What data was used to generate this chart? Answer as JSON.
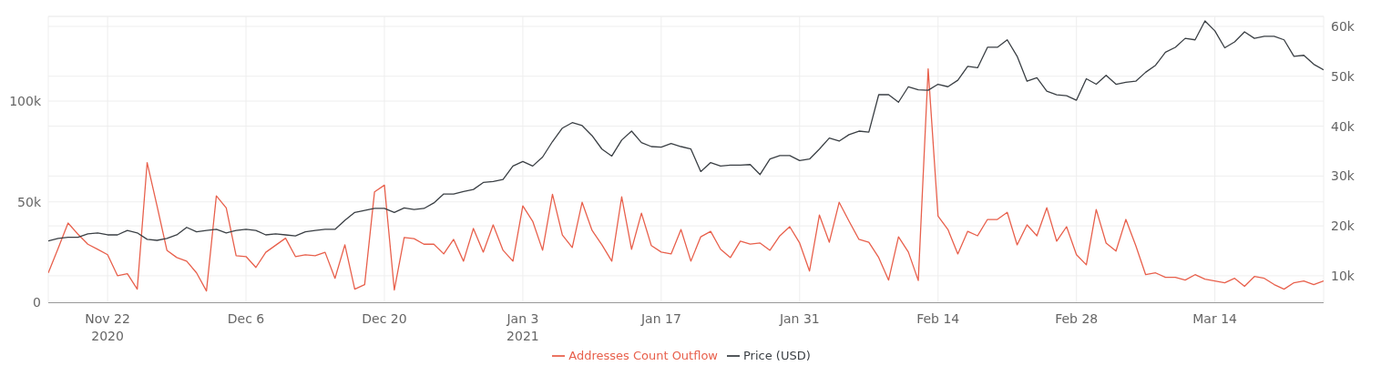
{
  "chart_data": {
    "type": "line",
    "x": [
      "2020-11-16",
      "2020-11-17",
      "2020-11-18",
      "2020-11-19",
      "2020-11-20",
      "2020-11-21",
      "2020-11-22",
      "2020-11-23",
      "2020-11-24",
      "2020-11-25",
      "2020-11-26",
      "2020-11-27",
      "2020-11-28",
      "2020-11-29",
      "2020-11-30",
      "2020-12-01",
      "2020-12-02",
      "2020-12-03",
      "2020-12-04",
      "2020-12-05",
      "2020-12-06",
      "2020-12-07",
      "2020-12-08",
      "2020-12-09",
      "2020-12-10",
      "2020-12-11",
      "2020-12-12",
      "2020-12-13",
      "2020-12-14",
      "2020-12-15",
      "2020-12-16",
      "2020-12-17",
      "2020-12-18",
      "2020-12-19",
      "2020-12-20",
      "2020-12-21",
      "2020-12-22",
      "2020-12-23",
      "2020-12-24",
      "2020-12-25",
      "2020-12-26",
      "2020-12-27",
      "2020-12-28",
      "2020-12-29",
      "2020-12-30",
      "2020-12-31",
      "2021-01-01",
      "2021-01-02",
      "2021-01-03",
      "2021-01-04",
      "2021-01-05",
      "2021-01-06",
      "2021-01-07",
      "2021-01-08",
      "2021-01-09",
      "2021-01-10",
      "2021-01-11",
      "2021-01-12",
      "2021-01-13",
      "2021-01-14",
      "2021-01-15",
      "2021-01-16",
      "2021-01-17",
      "2021-01-18",
      "2021-01-19",
      "2021-01-20",
      "2021-01-21",
      "2021-01-22",
      "2021-01-23",
      "2021-01-24",
      "2021-01-25",
      "2021-01-26",
      "2021-01-27",
      "2021-01-28",
      "2021-01-29",
      "2021-01-30",
      "2021-01-31",
      "2021-02-01",
      "2021-02-02",
      "2021-02-03",
      "2021-02-04",
      "2021-02-05",
      "2021-02-06",
      "2021-02-07",
      "2021-02-08",
      "2021-02-09",
      "2021-02-10",
      "2021-02-11",
      "2021-02-12",
      "2021-02-13",
      "2021-02-14",
      "2021-02-15",
      "2021-02-16",
      "2021-02-17",
      "2021-02-18",
      "2021-02-19",
      "2021-02-20",
      "2021-02-21",
      "2021-02-22",
      "2021-02-23",
      "2021-02-24",
      "2021-02-25",
      "2021-02-26",
      "2021-02-27",
      "2021-02-28",
      "2021-03-01",
      "2021-03-02",
      "2021-03-03",
      "2021-03-04",
      "2021-03-05",
      "2021-03-06",
      "2021-03-07",
      "2021-03-08",
      "2021-03-09",
      "2021-03-10",
      "2021-03-11",
      "2021-03-12",
      "2021-03-13",
      "2021-03-14",
      "2021-03-15",
      "2021-03-16",
      "2021-03-17",
      "2021-03-18",
      "2021-03-19",
      "2021-03-20",
      "2021-03-21",
      "2021-03-22",
      "2021-03-23",
      "2021-03-24",
      "2021-03-25"
    ],
    "series": [
      {
        "name": "Addresses Count Outflow",
        "color": "#e8604c",
        "values": [
          14800,
          27000,
          39500,
          34000,
          29000,
          26500,
          23800,
          13400,
          14400,
          6700,
          69500,
          48000,
          26000,
          22400,
          20600,
          14800,
          5800,
          53000,
          47000,
          23300,
          22900,
          17500,
          25000,
          28500,
          32000,
          22900,
          23800,
          23300,
          25000,
          12100,
          28700,
          6700,
          9000,
          55000,
          58300,
          6300,
          32300,
          31800,
          29000,
          29000,
          24200,
          31400,
          20600,
          36800,
          25100,
          38600,
          26000,
          20600,
          48000,
          40400,
          26000,
          53800,
          33600,
          27400,
          49800,
          35900,
          28700,
          20600,
          52500,
          26500,
          44400,
          28300,
          25100,
          24200,
          36300,
          20600,
          32700,
          35400,
          26500,
          22400,
          30500,
          29100,
          29600,
          26000,
          33200,
          37700,
          29600,
          15700,
          43500,
          30000,
          49800,
          40400,
          31400,
          30000,
          22400,
          11200,
          32700,
          25100,
          11000,
          116000,
          43000,
          36300,
          24200,
          35400,
          33200,
          41300,
          41300,
          44800,
          28700,
          38600,
          33200,
          47100,
          30500,
          37700,
          23800,
          18800,
          46200,
          29600,
          25600,
          41300,
          28300,
          13900,
          14800,
          12600,
          12600,
          11200,
          13900,
          11700,
          10800,
          9900,
          12100,
          8100,
          13000,
          12100,
          9000,
          6700,
          9900,
          10800,
          9000,
          10800
        ]
      },
      {
        "name": "Price (USD)",
        "color": "#3a3f44",
        "axis": "y2",
        "values": [
          17000,
          17500,
          17700,
          17700,
          18400,
          18600,
          18200,
          18200,
          19100,
          18600,
          17300,
          17100,
          17500,
          18200,
          19700,
          18800,
          19100,
          19300,
          18600,
          19100,
          19300,
          19100,
          18200,
          18400,
          18200,
          18000,
          18800,
          19100,
          19300,
          19300,
          21100,
          22700,
          23100,
          23500,
          23500,
          22700,
          23600,
          23300,
          23500,
          24600,
          26400,
          26400,
          26900,
          27300,
          28700,
          28900,
          29300,
          32000,
          32900,
          32000,
          33800,
          36900,
          39600,
          40700,
          40100,
          38100,
          35400,
          34000,
          37200,
          39000,
          36700,
          35900,
          35800,
          36500,
          35900,
          35400,
          30900,
          32700,
          32000,
          32200,
          32200,
          32300,
          30300,
          33400,
          34100,
          34100,
          33100,
          33400,
          35400,
          37600,
          37000,
          38300,
          39000,
          38800,
          46300,
          46300,
          44800,
          47900,
          47300,
          47200,
          48400,
          47900,
          49200,
          52000,
          51700,
          55800,
          55800,
          57300,
          54000,
          49000,
          49700,
          47000,
          46300,
          46100,
          45200,
          49500,
          48400,
          50200,
          48400,
          48800,
          49000,
          50800,
          52200,
          54800,
          55800,
          57600,
          57300,
          61100,
          59100,
          55700,
          56900,
          58900,
          57600,
          58000,
          58000,
          57300,
          54000,
          54200,
          52400,
          51300
        ]
      }
    ],
    "xlim": [
      "2020-11-16",
      "2021-03-25"
    ],
    "xticks": [
      {
        "value": "2020-11-22",
        "label": "Nov 22\n2020"
      },
      {
        "value": "2020-12-06",
        "label": "Dec 6"
      },
      {
        "value": "2020-12-20",
        "label": "Dec 20"
      },
      {
        "value": "2021-01-03",
        "label": "Jan 3\n2021"
      },
      {
        "value": "2021-01-17",
        "label": "Jan 17"
      },
      {
        "value": "2021-01-31",
        "label": "Jan 31"
      },
      {
        "value": "2021-02-14",
        "label": "Feb 14"
      },
      {
        "value": "2021-02-28",
        "label": "Feb 28"
      },
      {
        "value": "2021-03-14",
        "label": "Mar 14"
      }
    ],
    "ylim": [
      0,
      142000
    ],
    "yticks": [
      {
        "value": 0,
        "label": "0"
      },
      {
        "value": 50000,
        "label": "50k"
      },
      {
        "value": 100000,
        "label": "100k"
      }
    ],
    "y2lim": [
      4600,
      62000
    ],
    "y2ticks": [
      {
        "value": 10000,
        "label": "10k"
      },
      {
        "value": 20000,
        "label": "20k"
      },
      {
        "value": 30000,
        "label": "30k"
      },
      {
        "value": 40000,
        "label": "40k"
      },
      {
        "value": 50000,
        "label": "50k"
      },
      {
        "value": 60000,
        "label": "60k"
      }
    ],
    "grid": true,
    "legend": "bottom",
    "marker": "none",
    "line_style": "solid"
  }
}
